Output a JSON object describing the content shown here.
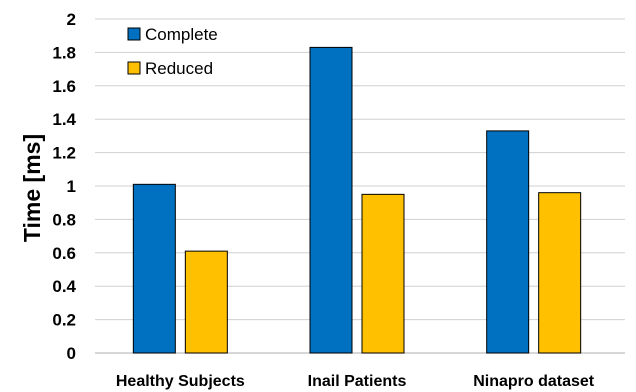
{
  "chart_data": {
    "type": "bar",
    "title": "",
    "xlabel": "",
    "ylabel": "Time [ms]",
    "ylim": [
      0,
      2
    ],
    "yticks": [
      "0",
      "0.2",
      "0.4",
      "0.6",
      "0.8",
      "1",
      "1.2",
      "1.4",
      "1.6",
      "1.8",
      "2"
    ],
    "categories": [
      "Healthy  Subjects",
      "Inail Patients",
      "Ninapro dataset"
    ],
    "series": [
      {
        "name": "Complete",
        "color": "#0070C0",
        "values": [
          1.01,
          1.83,
          1.33
        ]
      },
      {
        "name": "Reduced",
        "color": "#FFC000",
        "values": [
          0.61,
          0.95,
          0.96
        ]
      }
    ],
    "grid": true,
    "legend": "top-left"
  }
}
